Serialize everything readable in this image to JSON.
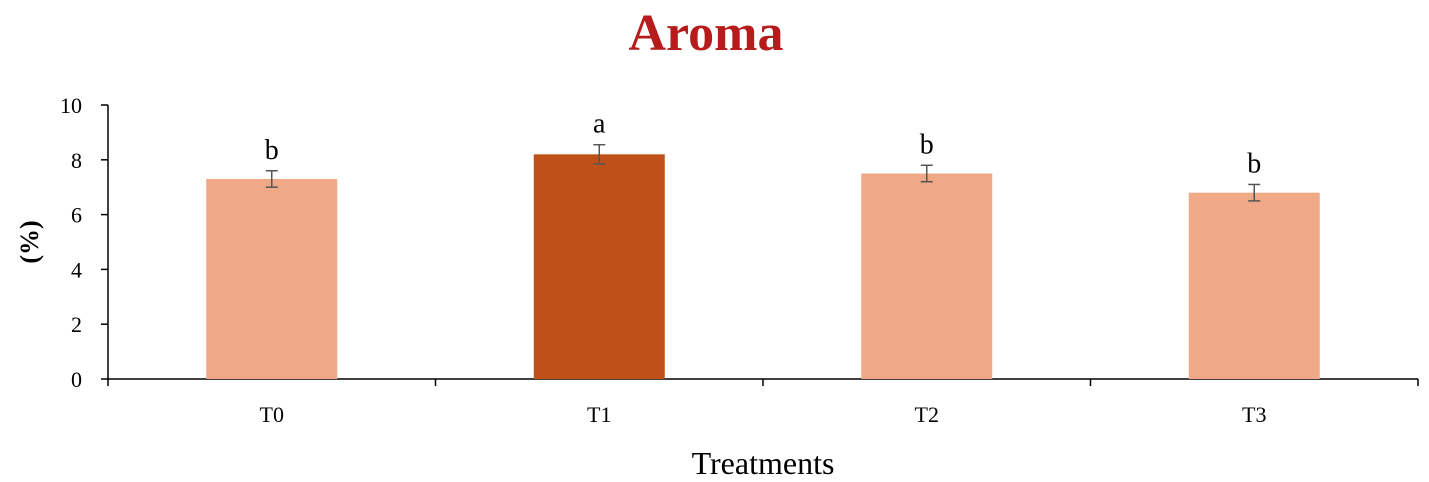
{
  "chart_data": {
    "type": "bar",
    "title": "Aroma",
    "xlabel": "Treatments",
    "ylabel": "(%)",
    "ylim": [
      0,
      10
    ],
    "yticks": [
      0,
      2,
      4,
      6,
      8,
      10
    ],
    "categories": [
      "T0",
      "T1",
      "T2",
      "T3"
    ],
    "values": [
      7.3,
      8.2,
      7.5,
      6.8
    ],
    "errors": [
      0.3,
      0.35,
      0.3,
      0.3
    ],
    "annotations": [
      "b",
      "a",
      "b",
      "b"
    ],
    "highlight_index": 1,
    "grid": false,
    "legend": "none"
  },
  "colors": {
    "title": "#b71c1c",
    "bar": "#f0a986",
    "highlight": "#bf5017",
    "axis": "#000000",
    "error": "#555555"
  }
}
